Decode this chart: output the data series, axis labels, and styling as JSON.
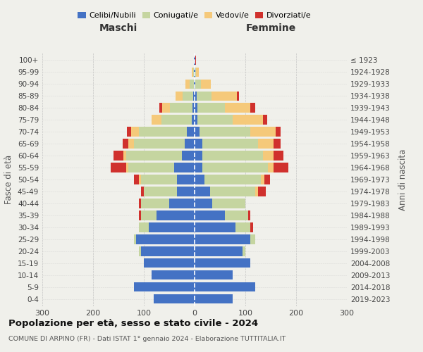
{
  "age_groups": [
    "0-4",
    "5-9",
    "10-14",
    "15-19",
    "20-24",
    "25-29",
    "30-34",
    "35-39",
    "40-44",
    "45-49",
    "50-54",
    "55-59",
    "60-64",
    "65-69",
    "70-74",
    "75-79",
    "80-84",
    "85-89",
    "90-94",
    "95-99",
    "100+"
  ],
  "birth_years": [
    "2019-2023",
    "2014-2018",
    "2009-2013",
    "2004-2008",
    "1999-2003",
    "1994-1998",
    "1989-1993",
    "1984-1988",
    "1979-1983",
    "1974-1978",
    "1969-1973",
    "1964-1968",
    "1959-1963",
    "1954-1958",
    "1949-1953",
    "1944-1948",
    "1939-1943",
    "1934-1938",
    "1929-1933",
    "1924-1928",
    "≤ 1923"
  ],
  "colors": {
    "celibi": "#4472C4",
    "coniugati": "#C5D5A0",
    "vedovi": "#F5C97A",
    "divorziati": "#D0312D"
  },
  "male": {
    "celibi": [
      80,
      120,
      85,
      100,
      105,
      115,
      90,
      75,
      50,
      35,
      35,
      40,
      25,
      20,
      15,
      5,
      4,
      3,
      2,
      1,
      1
    ],
    "coniugati": [
      0,
      0,
      0,
      0,
      5,
      5,
      20,
      30,
      55,
      65,
      70,
      90,
      110,
      100,
      95,
      60,
      45,
      20,
      8,
      2,
      0
    ],
    "vedovi": [
      0,
      0,
      0,
      0,
      0,
      0,
      0,
      0,
      0,
      0,
      5,
      5,
      5,
      10,
      15,
      20,
      15,
      15,
      8,
      3,
      0
    ],
    "divorziati": [
      0,
      0,
      0,
      0,
      0,
      0,
      0,
      5,
      5,
      5,
      10,
      30,
      20,
      12,
      8,
      0,
      5,
      0,
      0,
      0,
      0
    ]
  },
  "female": {
    "celibi": [
      75,
      120,
      75,
      110,
      95,
      110,
      80,
      60,
      35,
      30,
      20,
      15,
      15,
      15,
      10,
      5,
      5,
      4,
      2,
      1,
      1
    ],
    "coniugati": [
      0,
      0,
      0,
      0,
      5,
      10,
      30,
      45,
      65,
      90,
      110,
      130,
      120,
      110,
      100,
      70,
      55,
      30,
      10,
      2,
      0
    ],
    "vedovi": [
      0,
      0,
      0,
      0,
      0,
      0,
      0,
      0,
      0,
      5,
      8,
      10,
      20,
      30,
      50,
      60,
      50,
      50,
      20,
      5,
      1
    ],
    "divorziati": [
      0,
      0,
      0,
      0,
      0,
      0,
      5,
      5,
      0,
      15,
      10,
      30,
      20,
      15,
      10,
      8,
      10,
      3,
      0,
      0,
      1
    ]
  },
  "title": "Popolazione per età, sesso e stato civile - 2024",
  "subtitle": "COMUNE DI ARPINO (FR) - Dati ISTAT 1° gennaio 2024 - Elaborazione TUTTITALIA.IT",
  "xlabel_left": "Maschi",
  "xlabel_right": "Femmine",
  "ylabel_left": "Fasce di età",
  "ylabel_right": "Anni di nascita",
  "xlim": 300,
  "bg_color": "#f0f0eb",
  "legend_labels": [
    "Celibi/Nubili",
    "Coniugati/e",
    "Vedovi/e",
    "Divorziati/e"
  ]
}
